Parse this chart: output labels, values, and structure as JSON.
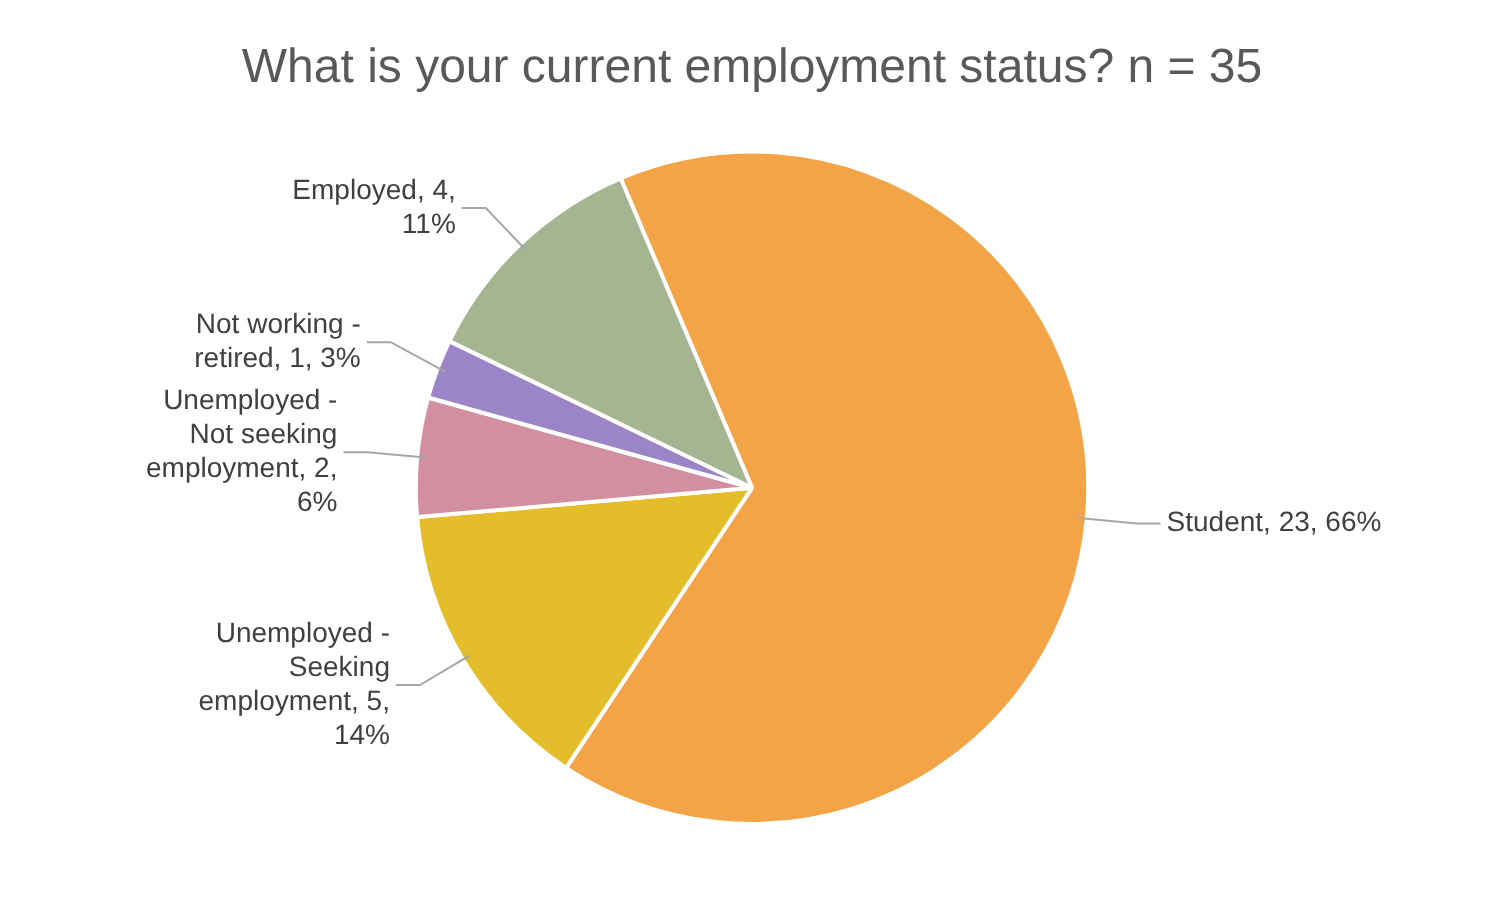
{
  "chart_data": {
    "type": "pie",
    "title": "What is your current employment status? n = 35",
    "categories": [
      "Student, 23, 66%",
      "Unemployed - Seeking employment, 5, 14%",
      "Unemployed - Not seeking employment, 2, 6%",
      "Not working - retired, 1, 3%",
      "Employed, 4, 11%"
    ],
    "values": [
      23,
      5,
      2,
      1,
      4
    ],
    "colors": [
      "#f3a447",
      "#e4bd2b",
      "#d38fa2",
      "#9b85c8",
      "#a5b592"
    ],
    "legend": false
  }
}
